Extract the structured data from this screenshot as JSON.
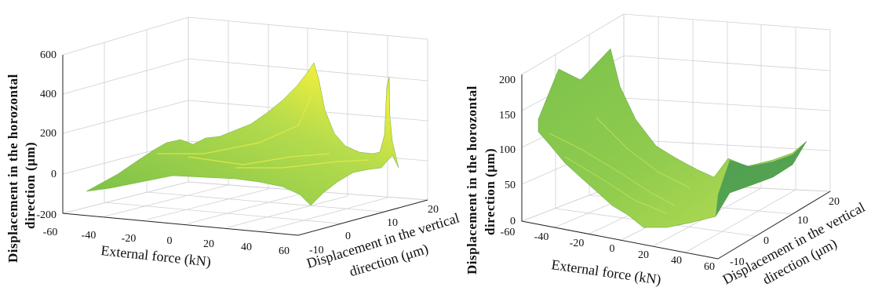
{
  "chart_data": [
    {
      "type": "surface",
      "title": "",
      "xlabel": "External force (kN)",
      "ylabel": [
        "Displacement in the vertical",
        "direction (μm)"
      ],
      "zlabel": [
        "Displacement in the horozontal",
        "direction (μm)"
      ],
      "x_ticks": [
        "-60",
        "-40",
        "-20",
        "0",
        "20",
        "40",
        "60"
      ],
      "y_ticks": [
        "-10",
        "0",
        "10",
        "20"
      ],
      "z_ticks": [
        "600",
        "400",
        "200",
        "0",
        "-200"
      ],
      "xlim": [
        -60,
        60
      ],
      "ylim": [
        -10,
        20
      ],
      "zlim": [
        -200,
        600
      ],
      "grid": true,
      "colormap": [
        "#7fc24a",
        "#f4f03c"
      ]
    },
    {
      "type": "surface",
      "title": "",
      "xlabel": "External force (kN)",
      "ylabel": [
        "Displacement in the vertical",
        "direction (μm)"
      ],
      "zlabel": [
        "Displacement in the horozontal",
        "direction (μm)"
      ],
      "x_ticks": [
        "-60",
        "-40",
        "-20",
        "0",
        "20",
        "40",
        "60"
      ],
      "y_ticks": [
        "-10",
        "0",
        "10",
        "20"
      ],
      "z_ticks": [
        "200",
        "150",
        "100",
        "50",
        "0"
      ],
      "xlim": [
        -60,
        60
      ],
      "ylim": [
        -10,
        20
      ],
      "zlim": [
        0,
        200
      ],
      "grid": true,
      "colormap": [
        "#4a9a4a",
        "#c8e060"
      ]
    }
  ]
}
